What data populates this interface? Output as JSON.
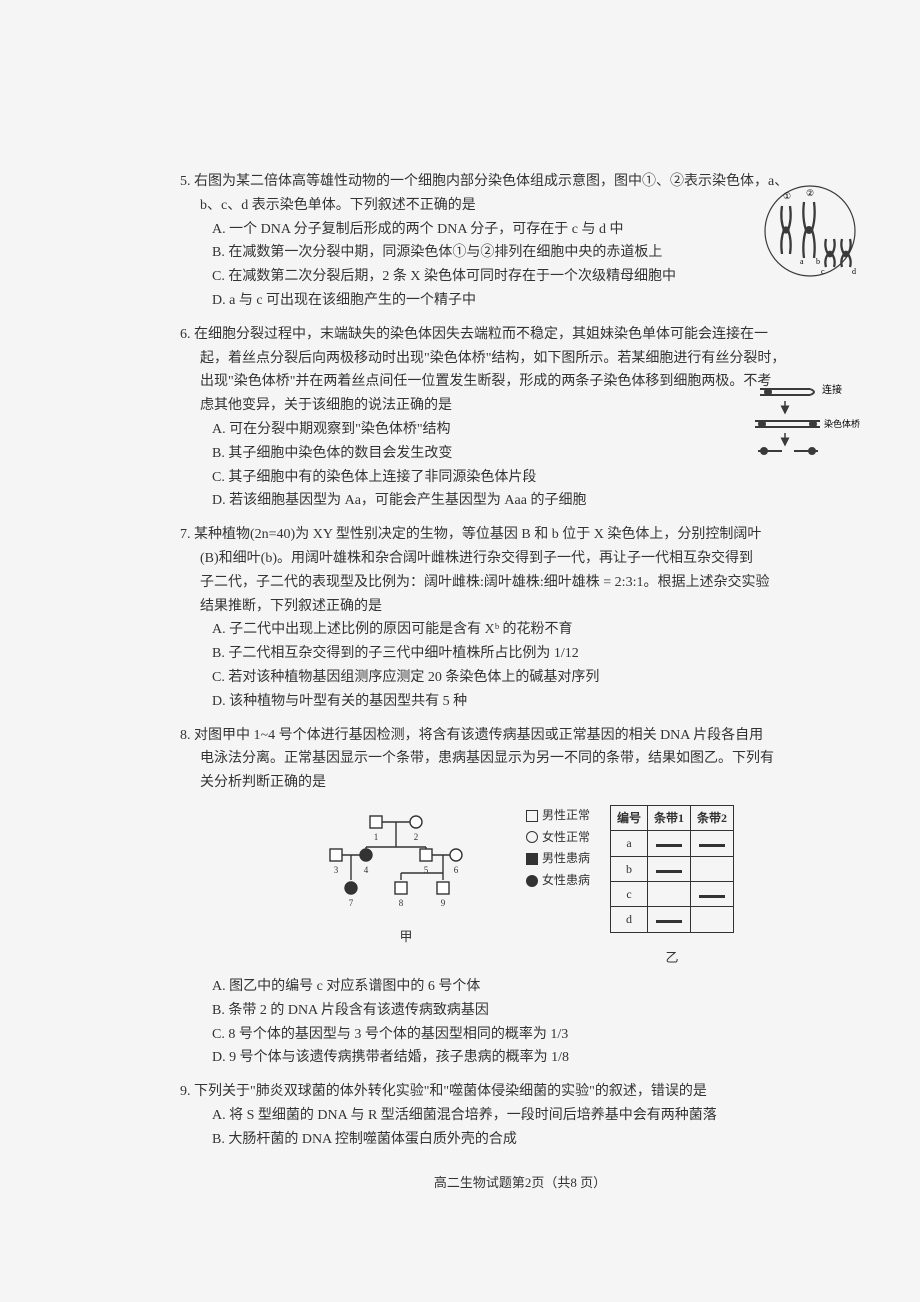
{
  "q5": {
    "stem": "5. 右图为某二倍体高等雄性动物的一个细胞内部分染色体组成示意图，图中①、②表示染色体，a、",
    "stem2": "b、c、d 表示染色单体。下列叙述不正确的是",
    "optA": "A. 一个 DNA 分子复制后形成的两个 DNA 分子，可存在于 c 与 d 中",
    "optB": "B. 在减数第一次分裂中期，同源染色体①与②排列在细胞中央的赤道板上",
    "optC": "C. 在减数第二次分裂后期，2 条 X 染色体可同时存在于一个次级精母细胞中",
    "optD": "D. a 与 c 可出现在该细胞产生的一个精子中",
    "fig": {
      "labels": [
        "①",
        "②",
        "a",
        "b",
        "c",
        "d"
      ],
      "stroke": "#3a3a3a",
      "bg": "#ffffff"
    }
  },
  "q6": {
    "stem": "6. 在细胞分裂过程中，末端缺失的染色体因失去端粒而不稳定，其姐妹染色单体可能会连接在一",
    "line2": "起，着丝点分裂后向两极移动时出现\"染色体桥\"结构，如下图所示。若某细胞进行有丝分裂时，",
    "line3": "出现\"染色体桥\"并在两着丝点间任一位置发生断裂，形成的两条子染色体移到细胞两极。不考",
    "line4": "虑其他变异，关于该细胞的说法正确的是",
    "optA": "A. 可在分裂中期观察到\"染色体桥\"结构",
    "optB": "B. 其子细胞中染色体的数目会发生改变",
    "optC": "C. 其子细胞中有的染色体上连接了非同源染色体片段",
    "optD": "D. 若该细胞基因型为 Aa，可能会产生基因型为 Aaa 的子细胞",
    "fig": {
      "label1": "连接",
      "label2": "染色体桥",
      "stroke": "#3a3a3a"
    }
  },
  "q7": {
    "stem": "7. 某种植物(2n=40)为 XY 型性别决定的生物，等位基因 B 和 b 位于 X 染色体上，分别控制阔叶",
    "line2": "(B)和细叶(b)。用阔叶雄株和杂合阔叶雌株进行杂交得到子一代，再让子一代相互杂交得到",
    "line3": "子二代，子二代的表现型及比例为：阔叶雌株:阔叶雄株:细叶雄株 = 2:3:1。根据上述杂交实验",
    "line4": "结果推断，下列叙述正确的是",
    "optA": "A. 子二代中出现上述比例的原因可能是含有 Xᵇ 的花粉不育",
    "optB": "B. 子二代相互杂交得到的子三代中细叶植株所占比例为 1/12",
    "optC": "C. 若对该种植物基因组测序应测定 20 条染色体上的碱基对序列",
    "optD": "D. 该种植物与叶型有关的基因型共有 5 种"
  },
  "q8": {
    "stem": "8. 对图甲中 1~4 号个体进行基因检测，将含有该遗传病基因或正常基因的相关 DNA 片段各自用",
    "line2": "电泳法分离。正常基因显示一个条带，患病基因显示为另一不同的条带，结果如图乙。下列有",
    "line3": "关分析判断正确的是",
    "legend": {
      "nm": "男性正常",
      "nf": "女性正常",
      "am": "男性患病",
      "af": "女性患病"
    },
    "table": {
      "headers": [
        "编号",
        "条带1",
        "条带2"
      ],
      "rows": [
        "a",
        "b",
        "c",
        "d"
      ],
      "bands": [
        [
          true,
          true
        ],
        [
          true,
          false
        ],
        [
          false,
          true
        ],
        [
          true,
          false
        ]
      ]
    },
    "labJia": "甲",
    "labYi": "乙",
    "optA": "A. 图乙中的编号 c 对应系谱图中的 6 号个体",
    "optB": "B. 条带 2 的 DNA 片段含有该遗传病致病基因",
    "optC": "C. 8 号个体的基因型与 3 号个体的基因型相同的概率为 1/3",
    "optD": "D. 9 号个体与该遗传病携带者结婚，孩子患病的概率为 1/8",
    "pedigree": {
      "gen1": [
        {
          "n": 1,
          "s": "sq",
          "f": 0
        },
        {
          "n": 2,
          "s": "ci",
          "f": 0
        }
      ],
      "gen2": [
        {
          "n": 3,
          "s": "sq",
          "f": 0
        },
        {
          "n": 4,
          "s": "ci",
          "f": 1
        },
        {
          "n": 5,
          "s": "sq",
          "f": 0
        },
        {
          "n": 6,
          "s": "ci",
          "f": 0
        }
      ],
      "gen3": [
        {
          "n": 7,
          "s": "ci",
          "f": 1
        },
        {
          "n": 8,
          "s": "sq",
          "f": 0
        },
        {
          "n": 9,
          "s": "sq",
          "f": 0
        }
      ]
    }
  },
  "q9": {
    "stem": "9. 下列关于\"肺炎双球菌的体外转化实验\"和\"噬菌体侵染细菌的实验\"的叙述，错误的是",
    "optA": "A. 将 S 型细菌的 DNA 与 R 型活细菌混合培养，一段时间后培养基中会有两种菌落",
    "optB": "B. 大肠杆菌的 DNA 控制噬菌体蛋白质外壳的合成"
  },
  "footer": "高二生物试题第2页（共8 页）"
}
